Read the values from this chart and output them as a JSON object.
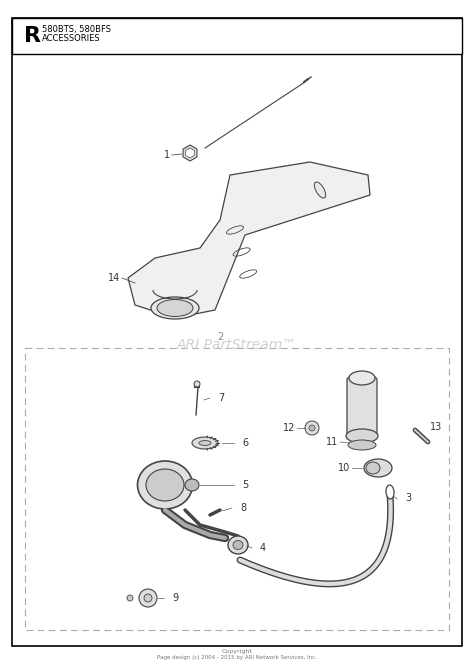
{
  "title_letter": "R",
  "title_model": "580BTS, 580BFS",
  "title_section": "ACCESSORIES",
  "watermark": "ARI PartStream™",
  "copyright_line1": "Copyright",
  "copyright_line2": "Page design (c) 2004 - 2015 by ARI Network Services, Inc.",
  "background_color": "#ffffff"
}
